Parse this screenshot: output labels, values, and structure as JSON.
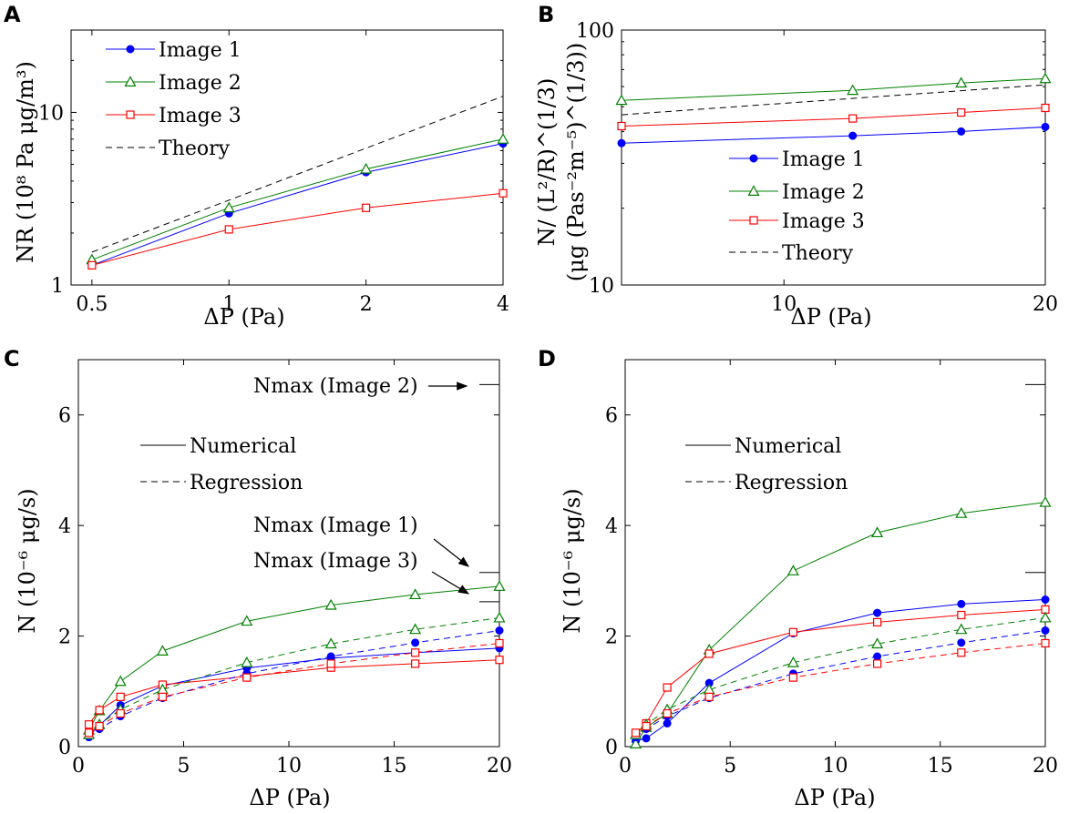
{
  "colors": {
    "image1": "#0000ff",
    "image2": "#008000",
    "image3": "#ff0000",
    "theory": "#000000"
  },
  "panels": [
    {
      "id": "A",
      "letter": "A",
      "type": "line",
      "xscale": "log",
      "yscale": "log",
      "xlim": [
        0.45,
        4
      ],
      "ylim": [
        1,
        30
      ],
      "xticks": [
        0.5,
        1,
        2,
        4
      ],
      "xtick_labels": [
        "0.5",
        "1",
        "2",
        "4"
      ],
      "yticks": [
        1,
        10
      ],
      "ytick_labels": [
        "1",
        "10"
      ],
      "xlabel": "ΔP (Pa)",
      "ylabel": "NR (10⁸ Pa μg/m³)",
      "legend": {
        "position": "top-left",
        "entries": [
          "Image 1",
          "Image 2",
          "Image 3",
          "Theory"
        ]
      },
      "series": [
        {
          "name": "Image 1",
          "color_key": "image1",
          "marker": "dot",
          "dash": false,
          "x": [
            0.5,
            1,
            2,
            4
          ],
          "y": [
            1.3,
            2.6,
            4.5,
            6.6
          ]
        },
        {
          "name": "Image 2",
          "color_key": "image2",
          "marker": "triangle",
          "dash": false,
          "x": [
            0.5,
            1,
            2,
            4
          ],
          "y": [
            1.4,
            2.8,
            4.7,
            7.0
          ]
        },
        {
          "name": "Image 3",
          "color_key": "image3",
          "marker": "square",
          "dash": false,
          "x": [
            0.5,
            1,
            2,
            4
          ],
          "y": [
            1.3,
            2.1,
            2.8,
            3.4
          ]
        },
        {
          "name": "Theory",
          "color_key": "theory",
          "marker": "none",
          "dash": true,
          "x": [
            0.5,
            4
          ],
          "y": [
            1.55,
            12.4
          ]
        }
      ]
    },
    {
      "id": "B",
      "letter": "B",
      "type": "line",
      "xscale": "log",
      "yscale": "log",
      "xlim": [
        6.5,
        20
      ],
      "ylim": [
        10,
        100
      ],
      "xticks": [
        10,
        20
      ],
      "xtick_labels": [
        "10",
        "20"
      ],
      "yticks": [
        10,
        100
      ],
      "ytick_labels": [
        "10",
        "100"
      ],
      "xlabel": "ΔP (Pa)",
      "ylabel_line1": "N/ (L²/R)^(1/3)",
      "ylabel_line2": "(μg (Pas⁻²m⁻⁵)^(1/3))",
      "legend": {
        "position": "center",
        "entries": [
          "Image 1",
          "Image 2",
          "Image 3",
          "Theory"
        ]
      },
      "series": [
        {
          "name": "Image 1",
          "color_key": "image1",
          "marker": "dot",
          "dash": false,
          "x": [
            6.5,
            12,
            16,
            20
          ],
          "y": [
            36,
            38.5,
            40,
            41.7
          ]
        },
        {
          "name": "Image 2",
          "color_key": "image2",
          "marker": "triangle",
          "dash": false,
          "x": [
            6.5,
            12,
            16,
            20
          ],
          "y": [
            53,
            58,
            62,
            64.5
          ]
        },
        {
          "name": "Image 3",
          "color_key": "image3",
          "marker": "square",
          "dash": false,
          "x": [
            6.5,
            12,
            16,
            20
          ],
          "y": [
            42,
            45,
            47.5,
            49.5
          ]
        },
        {
          "name": "Theory",
          "color_key": "theory",
          "marker": "none",
          "dash": true,
          "x": [
            6.5,
            20
          ],
          "y": [
            46.5,
            61
          ]
        }
      ]
    },
    {
      "id": "C",
      "letter": "C",
      "type": "line",
      "xscale": "linear",
      "yscale": "linear",
      "xlim": [
        0,
        20
      ],
      "ylim": [
        0,
        7
      ],
      "xticks": [
        0,
        5,
        10,
        15,
        20
      ],
      "xtick_labels": [
        "0",
        "5",
        "10",
        "15",
        "20"
      ],
      "yticks": [
        0,
        2,
        4,
        6
      ],
      "ytick_labels": [
        "0",
        "2",
        "4",
        "6"
      ],
      "xlabel": "ΔP (Pa)",
      "ylabel": "N (10⁻⁶ μg/s)",
      "legend": {
        "position": "upper-center",
        "entries": [
          "Numerical",
          "Regression"
        ]
      },
      "nmax_marks": [
        6.55,
        3.15,
        2.62
      ],
      "annotations": [
        "Nmax (Image 2)",
        "Nmax (Image 1)",
        "Nmax (Image 3)"
      ],
      "series": [
        {
          "name": "Image 1",
          "color_key": "image1",
          "marker": "dot",
          "dash": false,
          "x": [
            0.5,
            1,
            2,
            4,
            8,
            12,
            16,
            20
          ],
          "y": [
            0.2,
            0.38,
            0.75,
            1.1,
            1.42,
            1.6,
            1.7,
            1.78
          ]
        },
        {
          "name": "Image 2",
          "color_key": "image2",
          "marker": "triangle",
          "dash": false,
          "x": [
            0.5,
            1,
            2,
            4,
            8,
            12,
            16,
            20
          ],
          "y": [
            0.3,
            0.65,
            1.18,
            1.73,
            2.27,
            2.56,
            2.75,
            2.9
          ]
        },
        {
          "name": "Image 3",
          "color_key": "image3",
          "marker": "square",
          "dash": false,
          "x": [
            0.5,
            1,
            2,
            4,
            8,
            12,
            16,
            20
          ],
          "y": [
            0.4,
            0.66,
            0.9,
            1.12,
            1.27,
            1.43,
            1.5,
            1.57
          ]
        },
        {
          "name": "Image 1",
          "color_key": "image1",
          "marker": "dot",
          "dash": true,
          "x": [
            0.5,
            1,
            2,
            4,
            8,
            12,
            16,
            20
          ],
          "y": [
            0.17,
            0.32,
            0.55,
            0.88,
            1.32,
            1.63,
            1.88,
            2.1
          ]
        },
        {
          "name": "Image 2",
          "color_key": "image2",
          "marker": "triangle",
          "dash": true,
          "x": [
            0.5,
            1,
            2,
            4,
            8,
            12,
            16,
            20
          ],
          "y": [
            0.22,
            0.4,
            0.67,
            1.03,
            1.52,
            1.86,
            2.12,
            2.33
          ]
        },
        {
          "name": "Image 3",
          "color_key": "image3",
          "marker": "square",
          "dash": true,
          "x": [
            0.5,
            1,
            2,
            4,
            8,
            12,
            16,
            20
          ],
          "y": [
            0.25,
            0.37,
            0.6,
            0.9,
            1.25,
            1.5,
            1.7,
            1.87
          ]
        }
      ]
    },
    {
      "id": "D",
      "letter": "D",
      "type": "line",
      "xscale": "linear",
      "yscale": "linear",
      "xlim": [
        0,
        20
      ],
      "ylim": [
        0,
        7
      ],
      "xticks": [
        0,
        5,
        10,
        15,
        20
      ],
      "xtick_labels": [
        "0",
        "5",
        "10",
        "15",
        "20"
      ],
      "yticks": [
        0,
        2,
        4,
        6
      ],
      "ytick_labels": [
        "0",
        "2",
        "4",
        "6"
      ],
      "xlabel": "ΔP (Pa)",
      "ylabel": "N (10⁻⁶ μg/s)",
      "legend": {
        "position": "upper-center",
        "entries": [
          "Numerical",
          "Regression"
        ]
      },
      "nmax_marks": [
        6.55,
        3.15
      ],
      "series": [
        {
          "name": "Image 1",
          "color_key": "image1",
          "marker": "dot",
          "dash": false,
          "x": [
            0.5,
            1,
            2,
            4,
            8,
            12,
            16,
            20
          ],
          "y": [
            0.1,
            0.15,
            0.42,
            1.15,
            2.05,
            2.42,
            2.58,
            2.66
          ]
        },
        {
          "name": "Image 2",
          "color_key": "image2",
          "marker": "triangle",
          "dash": false,
          "x": [
            0.5,
            1,
            2,
            4,
            8,
            12,
            16,
            20
          ],
          "y": [
            0.05,
            0.35,
            0.6,
            1.75,
            3.18,
            3.87,
            4.22,
            4.42
          ]
        },
        {
          "name": "Image 3",
          "color_key": "image3",
          "marker": "square",
          "dash": false,
          "x": [
            0.5,
            1,
            2,
            4,
            8,
            12,
            16,
            20
          ],
          "y": [
            0.22,
            0.42,
            1.07,
            1.68,
            2.07,
            2.25,
            2.38,
            2.48
          ]
        },
        {
          "name": "Image 1",
          "color_key": "image1",
          "marker": "dot",
          "dash": true,
          "x": [
            0.5,
            1,
            2,
            4,
            8,
            12,
            16,
            20
          ],
          "y": [
            0.17,
            0.32,
            0.55,
            0.88,
            1.32,
            1.63,
            1.88,
            2.1
          ]
        },
        {
          "name": "Image 2",
          "color_key": "image2",
          "marker": "triangle",
          "dash": true,
          "x": [
            0.5,
            1,
            2,
            4,
            8,
            12,
            16,
            20
          ],
          "y": [
            0.22,
            0.4,
            0.67,
            1.03,
            1.52,
            1.86,
            2.12,
            2.33
          ]
        },
        {
          "name": "Image 3",
          "color_key": "image3",
          "marker": "square",
          "dash": true,
          "x": [
            0.5,
            1,
            2,
            4,
            8,
            12,
            16,
            20
          ],
          "y": [
            0.25,
            0.37,
            0.6,
            0.9,
            1.25,
            1.5,
            1.7,
            1.87
          ]
        }
      ]
    }
  ]
}
